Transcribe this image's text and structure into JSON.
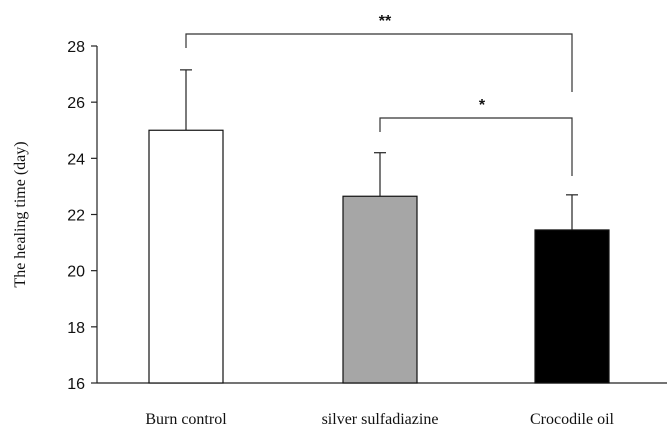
{
  "chart_data": {
    "type": "bar",
    "title": "",
    "xlabel": "",
    "ylabel": "The healing time (day)",
    "ylim": [
      16,
      28
    ],
    "yticks": [
      16,
      18,
      20,
      22,
      24,
      26,
      28
    ],
    "categories": [
      "Burn control",
      "silver sulfadiazine",
      "Crocodile oil"
    ],
    "values": [
      25.0,
      22.65,
      21.45
    ],
    "errors": [
      2.15,
      1.55,
      1.25
    ],
    "colors": [
      "#ffffff",
      "#a6a6a6",
      "#000000"
    ],
    "grid": false,
    "legend": "none",
    "significance": [
      {
        "from": 0,
        "to": 2,
        "label": "**"
      },
      {
        "from": 1,
        "to": 2,
        "label": "*"
      }
    ]
  }
}
